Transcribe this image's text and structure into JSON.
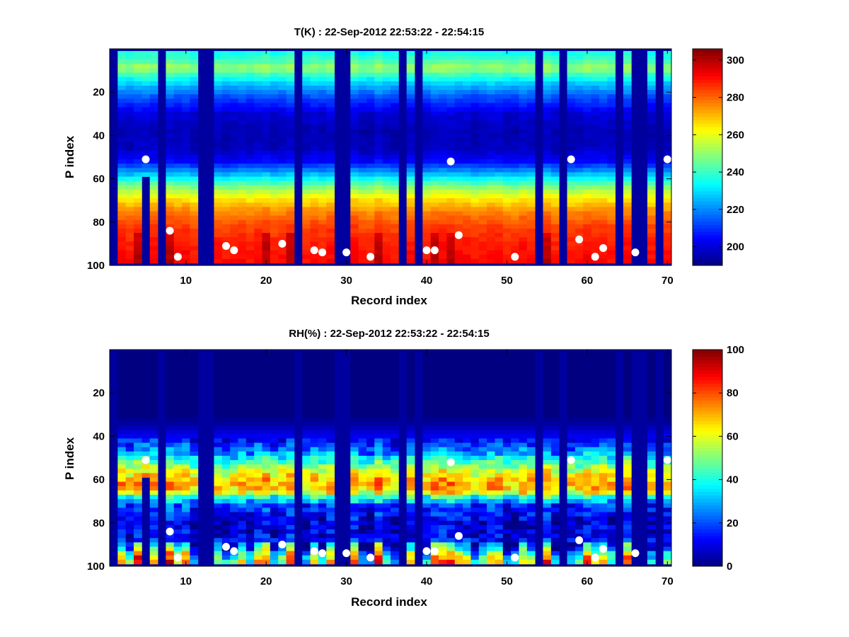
{
  "chart_data": [
    {
      "type": "heatmap",
      "title": "T(K) : 22-Sep-2012 22:53:22 - 22:54:15",
      "xlabel": "Record index",
      "ylabel": "P index",
      "xlim": [
        0.5,
        70.5
      ],
      "ylim": [
        0,
        100
      ],
      "y_reversed": true,
      "xticks": [
        10,
        20,
        30,
        40,
        50,
        60,
        70
      ],
      "yticks": [
        20,
        40,
        60,
        80,
        100
      ],
      "colorbar": {
        "range": [
          190,
          306
        ],
        "ticks": [
          200,
          220,
          240,
          260,
          280,
          300
        ],
        "colormap": "jet"
      },
      "description_profile": "cold ~195 K between P index 20 and 50, warm ~240-300 K near P index 5-15 and 70-98",
      "missing_records": [
        1,
        7,
        12,
        13,
        24,
        29,
        30,
        37,
        39,
        54,
        57,
        64,
        66,
        67,
        69
      ],
      "partial_records": [
        {
          "record": 5,
          "valid_to_p": 58
        }
      ],
      "markers": [
        {
          "record": 5,
          "p": 51
        },
        {
          "record": 8,
          "p": 84
        },
        {
          "record": 9,
          "p": 96
        },
        {
          "record": 15,
          "p": 91
        },
        {
          "record": 16,
          "p": 93
        },
        {
          "record": 22,
          "p": 90
        },
        {
          "record": 26,
          "p": 93
        },
        {
          "record": 27,
          "p": 94
        },
        {
          "record": 30,
          "p": 94
        },
        {
          "record": 33,
          "p": 96
        },
        {
          "record": 40,
          "p": 93
        },
        {
          "record": 41,
          "p": 93
        },
        {
          "record": 43,
          "p": 52
        },
        {
          "record": 44,
          "p": 86
        },
        {
          "record": 51,
          "p": 96
        },
        {
          "record": 58,
          "p": 51
        },
        {
          "record": 59,
          "p": 88
        },
        {
          "record": 61,
          "p": 96
        },
        {
          "record": 62,
          "p": 92
        },
        {
          "record": 66,
          "p": 94
        },
        {
          "record": 70,
          "p": 51
        }
      ]
    },
    {
      "type": "heatmap",
      "title": "RH(%) : 22-Sep-2012 22:53:22 - 22:54:15",
      "xlabel": "Record index",
      "ylabel": "P index",
      "xlim": [
        0.5,
        70.5
      ],
      "ylim": [
        0,
        100
      ],
      "y_reversed": true,
      "xticks": [
        10,
        20,
        30,
        40,
        50,
        60,
        70
      ],
      "yticks": [
        20,
        40,
        60,
        80,
        100
      ],
      "colorbar": {
        "range": [
          0,
          100
        ],
        "ticks": [
          0,
          20,
          40,
          60,
          80,
          100
        ],
        "colormap": "jet"
      },
      "description_profile": "dry ~0% above P index 35, moist band ~60-80% near P index 55-65, 30-95% near P index 90-98",
      "missing_records": [
        1,
        7,
        12,
        13,
        24,
        29,
        30,
        37,
        39,
        54,
        57,
        64,
        66,
        67,
        69
      ],
      "partial_records": [
        {
          "record": 5,
          "valid_to_p": 58
        }
      ],
      "markers": [
        {
          "record": 5,
          "p": 51
        },
        {
          "record": 8,
          "p": 84
        },
        {
          "record": 9,
          "p": 96
        },
        {
          "record": 15,
          "p": 91
        },
        {
          "record": 16,
          "p": 93
        },
        {
          "record": 22,
          "p": 90
        },
        {
          "record": 26,
          "p": 93
        },
        {
          "record": 27,
          "p": 94
        },
        {
          "record": 30,
          "p": 94
        },
        {
          "record": 33,
          "p": 96
        },
        {
          "record": 40,
          "p": 93
        },
        {
          "record": 41,
          "p": 93
        },
        {
          "record": 43,
          "p": 52
        },
        {
          "record": 44,
          "p": 86
        },
        {
          "record": 51,
          "p": 96
        },
        {
          "record": 58,
          "p": 51
        },
        {
          "record": 59,
          "p": 88
        },
        {
          "record": 61,
          "p": 96
        },
        {
          "record": 62,
          "p": 92
        },
        {
          "record": 66,
          "p": 94
        },
        {
          "record": 70,
          "p": 51
        }
      ]
    }
  ]
}
